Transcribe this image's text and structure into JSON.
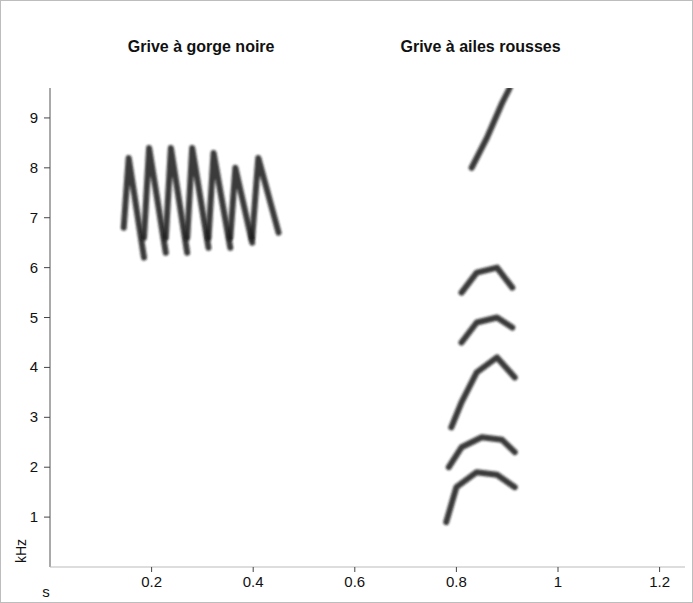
{
  "chart_data": {
    "type": "spectrogram",
    "x_label": "s",
    "y_label": "kHz",
    "xlim": [
      0,
      1.25
    ],
    "ylim": [
      0,
      9.6
    ],
    "xticks": [
      0.2,
      0.4,
      0.6,
      0.8,
      1,
      1.2
    ],
    "yticks": [
      1,
      2,
      3,
      4,
      5,
      6,
      7,
      8,
      9
    ],
    "series": [
      {
        "name": "Grive à gorge noire",
        "color": "#1a1a1a",
        "syllables": [
          {
            "x": [
              0.145,
              0.155,
              0.185
            ],
            "y": [
              6.8,
              8.2,
              6.2
            ]
          },
          {
            "x": [
              0.185,
              0.195,
              0.228
            ],
            "y": [
              6.6,
              8.4,
              6.3
            ]
          },
          {
            "x": [
              0.228,
              0.238,
              0.27
            ],
            "y": [
              6.6,
              8.4,
              6.3
            ]
          },
          {
            "x": [
              0.27,
              0.28,
              0.312
            ],
            "y": [
              6.6,
              8.4,
              6.4
            ]
          },
          {
            "x": [
              0.312,
              0.322,
              0.355
            ],
            "y": [
              6.6,
              8.3,
              6.4
            ]
          },
          {
            "x": [
              0.355,
              0.365,
              0.398
            ],
            "y": [
              6.6,
              8.0,
              6.5
            ]
          },
          {
            "x": [
              0.398,
              0.41,
              0.45
            ],
            "y": [
              6.6,
              8.2,
              6.7
            ]
          }
        ]
      },
      {
        "name": "Grive à ailes rousses",
        "color": "#1a1a1a",
        "syllables": [
          {
            "x": [
              0.78,
              0.8,
              0.84,
              0.88,
              0.915
            ],
            "y": [
              0.9,
              1.6,
              1.9,
              1.85,
              1.6
            ]
          },
          {
            "x": [
              0.785,
              0.81,
              0.85,
              0.89,
              0.915
            ],
            "y": [
              2.0,
              2.4,
              2.6,
              2.55,
              2.3
            ]
          },
          {
            "x": [
              0.79,
              0.81,
              0.84,
              0.88,
              0.915
            ],
            "y": [
              2.8,
              3.3,
              3.9,
              4.2,
              3.8
            ]
          },
          {
            "x": [
              0.81,
              0.84,
              0.88,
              0.91
            ],
            "y": [
              4.5,
              4.9,
              5.0,
              4.8
            ]
          },
          {
            "x": [
              0.81,
              0.84,
              0.88,
              0.91
            ],
            "y": [
              5.5,
              5.9,
              6.0,
              5.6
            ]
          },
          {
            "x": [
              0.83,
              0.86,
              0.89,
              0.905
            ],
            "y": [
              8.0,
              8.6,
              9.3,
              9.6
            ]
          }
        ]
      }
    ]
  }
}
